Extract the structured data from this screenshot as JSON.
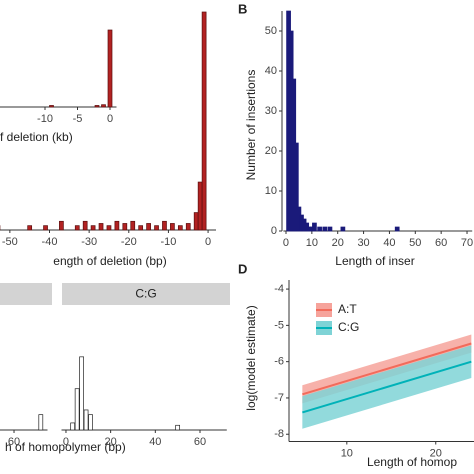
{
  "chart_data": [
    {
      "type": "bar",
      "xlabel": "ength of deletion (bp)",
      "color": "#b22222",
      "outline": "#5a0e0e",
      "x": [
        -53,
        -45,
        -41,
        -37,
        -33,
        -31,
        -29,
        -27,
        -25,
        -23,
        -21,
        -19,
        -17,
        -15,
        -13,
        -11,
        -9,
        -7,
        -5,
        -3,
        -2,
        -1
      ],
      "values": [
        2,
        2,
        2,
        4,
        2,
        4,
        2,
        3,
        2,
        4,
        3,
        4,
        2,
        3,
        2,
        4,
        3,
        2,
        3,
        8,
        22,
        100
      ],
      "xlim": [
        -54,
        2
      ],
      "xticks": [
        -50,
        -40,
        -30,
        -20,
        -10,
        0
      ],
      "ylim": [
        0,
        100
      ]
    },
    {
      "type": "bar",
      "xlabel": "f deletion (kb)",
      "color": "#b22222",
      "outline": "#5a0e0e",
      "x": [
        -9,
        -2,
        -1,
        0
      ],
      "values": [
        2,
        2,
        3,
        100
      ],
      "xlim": [
        -13,
        1
      ],
      "xticks": [
        -10,
        -5,
        0
      ],
      "ylim": [
        0,
        100
      ]
    },
    {
      "type": "bar",
      "panel": "B",
      "ylabel": "Number of insertions",
      "xlabel": "Length of inser",
      "color": "#1a1a7a",
      "outline": "#1a1a7a",
      "x": [
        1,
        2,
        3,
        4,
        5,
        6,
        7,
        8,
        9,
        10,
        11,
        13,
        15,
        17,
        22,
        43
      ],
      "values": [
        55,
        50,
        38,
        22,
        6,
        4,
        3,
        2,
        1,
        1,
        2,
        1,
        1,
        1,
        1,
        1
      ],
      "xlim": [
        -1,
        72
      ],
      "xticks": [
        0,
        10,
        20,
        30,
        40,
        50,
        60,
        70
      ],
      "ylim": [
        0,
        55
      ],
      "yticks": [
        0,
        10,
        20,
        30,
        40,
        50
      ]
    },
    {
      "type": "bar",
      "xlabel": "h of homopolymer (bp)",
      "color": "#ffffff",
      "outline": "#222222",
      "x": [
        72
      ],
      "values": [
        13
      ],
      "xlim": [
        50,
        75
      ],
      "xticks": [
        60
      ],
      "ylim": [
        0,
        100
      ]
    },
    {
      "type": "bar",
      "strip": "C:G",
      "color": "#ffffff",
      "outline": "#222222",
      "x": [
        3,
        5,
        7,
        9,
        11,
        50
      ],
      "values": [
        6,
        35,
        62,
        17,
        13,
        4
      ],
      "xlim": [
        -2,
        72
      ],
      "xticks": [
        0,
        20,
        40,
        60
      ],
      "ylim": [
        0,
        100
      ]
    },
    {
      "type": "line",
      "panel": "D",
      "ylabel": "log(model estimate)",
      "xlabel": "Length of homop",
      "xlim": [
        3.5,
        24.3
      ],
      "xticks": [
        10,
        20
      ],
      "ylim": [
        -8.2,
        -3.75
      ],
      "yticks": [
        -4,
        -5,
        -6,
        -7,
        -8
      ],
      "x": [
        5,
        24
      ],
      "series": [
        {
          "name": "A:T",
          "color": "#f26b5b",
          "band_color": "#f6a39b",
          "values": [
            -6.9,
            -5.5
          ],
          "lower": [
            -7.15,
            -5.75
          ],
          "upper": [
            -6.65,
            -5.25
          ]
        },
        {
          "name": "C:G",
          "color": "#00b2b8",
          "band_color": "#7fd3d6",
          "values": [
            -7.4,
            -6.0
          ],
          "lower": [
            -7.85,
            -6.45
          ],
          "upper": [
            -6.95,
            -5.55
          ]
        }
      ]
    }
  ]
}
